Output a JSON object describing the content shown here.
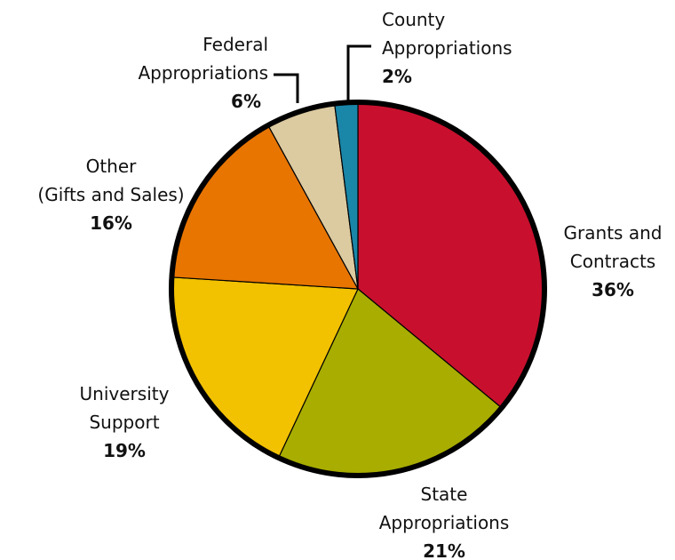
{
  "chart_data": {
    "type": "pie",
    "categories": [
      "Grants and\nContracts",
      "State\nAppropriations",
      "University\nSupport",
      "Other\n(Gifts and Sales)",
      "Federal\nAppropriations",
      "County\nAppropriations"
    ],
    "values": [
      36,
      21,
      19,
      16,
      6,
      2
    ],
    "value_labels": [
      "36%",
      "21%",
      "19%",
      "16%",
      "6%",
      "2%"
    ],
    "colors": [
      "#c8102e",
      "#a8ad00",
      "#f2c100",
      "#e87500",
      "#dccaa0",
      "#1a86a8"
    ]
  }
}
